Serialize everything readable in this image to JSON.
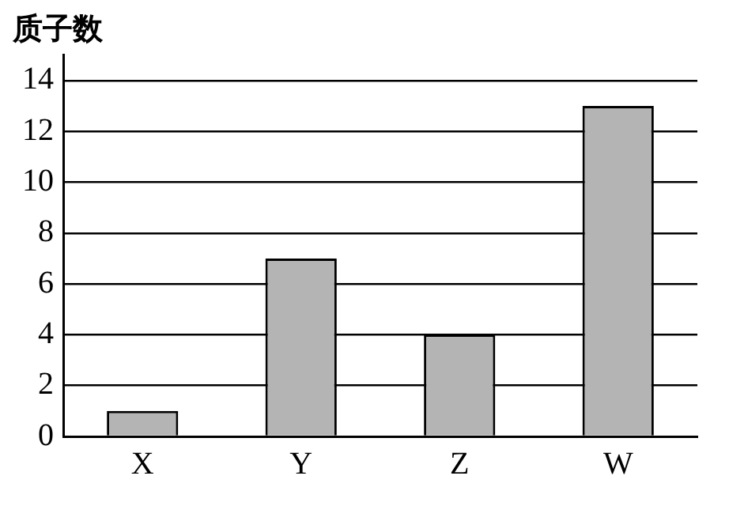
{
  "chart_data": {
    "type": "bar",
    "ylabel": "质子数",
    "categories": [
      "X",
      "Y",
      "Z",
      "W"
    ],
    "values": [
      1,
      7,
      4,
      13
    ],
    "color": "#b4b4b4",
    "ylim": [
      0,
      15
    ],
    "yticks": [
      0,
      2,
      4,
      6,
      8,
      10,
      12,
      14
    ],
    "grid": "y",
    "legend": false
  }
}
